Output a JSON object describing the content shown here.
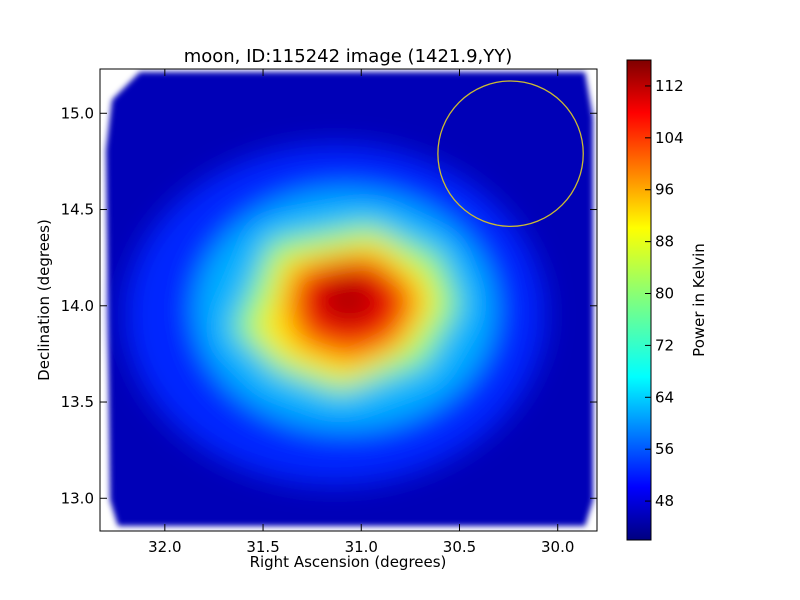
{
  "chart_data": {
    "type": "heatmap",
    "title": "moon, ID:115242 image (1421.9,YY)",
    "xlabel": "Right Ascension (degrees)",
    "ylabel": "Declination (degrees)",
    "xlim": [
      32.33,
      29.8
    ],
    "ylim": [
      12.83,
      15.23
    ],
    "x_inverted": true,
    "x_ticks": [
      "32.0",
      "31.5",
      "31.0",
      "30.5",
      "30.0"
    ],
    "x_tick_values": [
      32.0,
      31.5,
      31.0,
      30.5,
      30.0
    ],
    "y_ticks": [
      "13.0",
      "13.5",
      "14.0",
      "14.5",
      "15.0"
    ],
    "y_tick_values": [
      13.0,
      13.5,
      14.0,
      14.5,
      15.0
    ],
    "colorbar": {
      "label": "Power in Kelvin",
      "range": [
        42,
        116
      ],
      "ticks": [
        "48",
        "56",
        "64",
        "72",
        "80",
        "88",
        "96",
        "104",
        "112"
      ],
      "tick_values": [
        48,
        56,
        64,
        72,
        80,
        88,
        96,
        104,
        112
      ],
      "colormap": "jet"
    },
    "background_level": 46,
    "peak": {
      "ra": 31.1,
      "dec": 14.03,
      "value": 113
    },
    "hot_core_contour": 100,
    "warm_region_contour": 88,
    "annotation_circle": {
      "ra": 30.24,
      "dec": 14.79,
      "radius_deg": 0.37,
      "color": "#ccbb33",
      "interior_level": 48
    },
    "grid": false,
    "legend": "none"
  }
}
